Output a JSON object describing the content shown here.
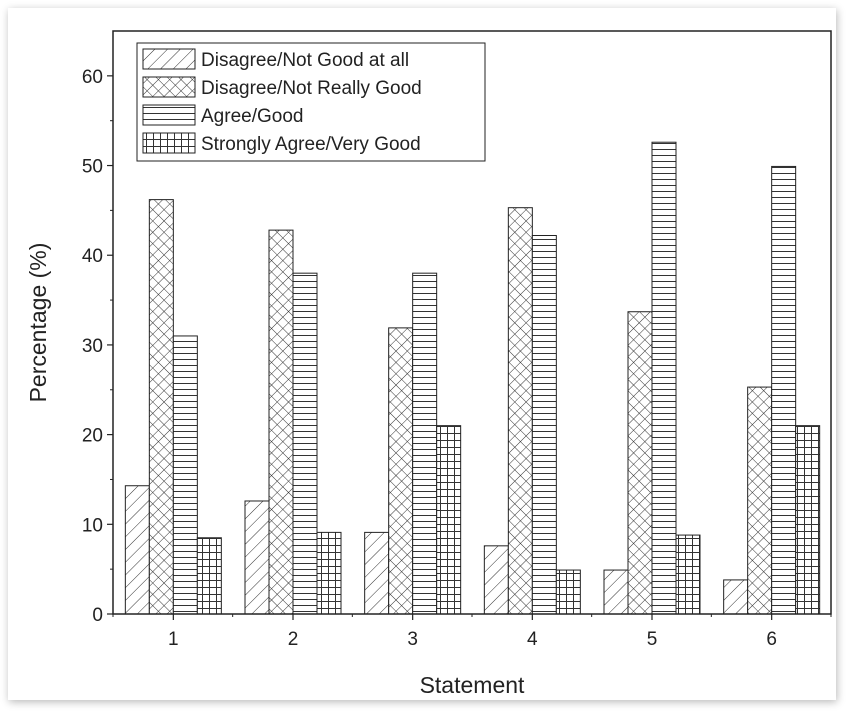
{
  "chart_data": {
    "type": "bar",
    "title": "",
    "xlabel": "Statement",
    "ylabel": "Percentage (%)",
    "ylim": [
      0,
      65
    ],
    "yticks": [
      0,
      10,
      20,
      30,
      40,
      50,
      60
    ],
    "categories": [
      "1",
      "2",
      "3",
      "4",
      "5",
      "6"
    ],
    "legend_position": "top-left",
    "grid": false,
    "series": [
      {
        "name": "Disagree/Not Good at all",
        "pattern": "diagonal-hatch",
        "values": [
          14.3,
          12.6,
          9.1,
          7.6,
          4.9,
          3.8
        ]
      },
      {
        "name": "Disagree/Not Really Good",
        "pattern": "cross-hatch",
        "values": [
          46.2,
          42.8,
          31.9,
          45.3,
          33.7,
          25.3
        ]
      },
      {
        "name": "Agree/Good",
        "pattern": "horizontal-lines",
        "values": [
          31.0,
          38.0,
          38.0,
          42.2,
          52.6,
          49.9
        ]
      },
      {
        "name": "Strongly Agree/Very Good",
        "pattern": "grid",
        "values": [
          8.5,
          9.1,
          21.0,
          4.9,
          8.8,
          21.0
        ]
      }
    ]
  }
}
